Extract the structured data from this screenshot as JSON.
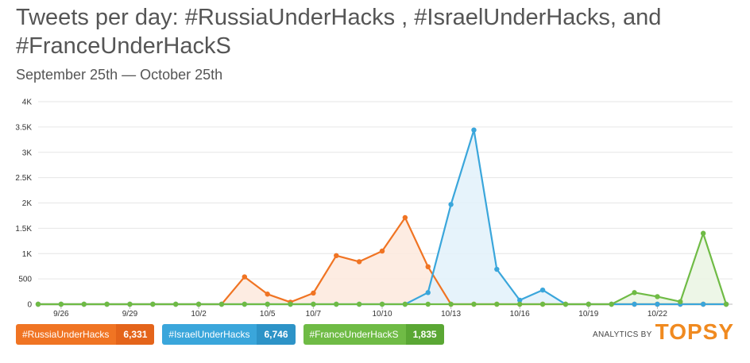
{
  "title": "Tweets per day: #RussiaUnderHacks , #IsraelUnderHacks, and #FranceUnderHackS",
  "subtitle": "September 25th — October 25th",
  "brand": {
    "small": "ANALYTICS BY",
    "big": "TOPSY"
  },
  "legend": [
    {
      "name": "#RussiaUnderHacks",
      "count": "6,331",
      "color": "#f07423",
      "count_color": "#e4641a"
    },
    {
      "name": "#IsraelUnderHacks",
      "count": "6,746",
      "color": "#3aa6db",
      "count_color": "#2d93c7"
    },
    {
      "name": "#FranceUnderHackS",
      "count": "1,835",
      "color": "#6fbb45",
      "count_color": "#5aa734"
    }
  ],
  "chart_data": {
    "type": "area",
    "x": [
      "9/25",
      "9/26",
      "9/27",
      "9/28",
      "9/29",
      "9/30",
      "10/1",
      "10/2",
      "10/3",
      "10/4",
      "10/5",
      "10/6",
      "10/7",
      "10/8",
      "10/9",
      "10/10",
      "10/11",
      "10/12",
      "10/13",
      "10/14",
      "10/15",
      "10/16",
      "10/17",
      "10/18",
      "10/19",
      "10/20",
      "10/21",
      "10/22",
      "10/23",
      "10/24",
      "10/25"
    ],
    "x_ticks": [
      "9/26",
      "9/29",
      "10/2",
      "10/5",
      "10/7",
      "10/10",
      "10/13",
      "10/16",
      "10/19",
      "10/22"
    ],
    "y_ticks": [
      "0",
      "500",
      "1K",
      "1.5K",
      "2K",
      "2.5K",
      "3K",
      "3.5K",
      "4K"
    ],
    "ylim": [
      0,
      4000
    ],
    "series": [
      {
        "name": "#RussiaUnderHacks",
        "color": "#f07423",
        "fill": "#fde9dd",
        "values": [
          0,
          0,
          0,
          0,
          0,
          0,
          0,
          0,
          0,
          540,
          200,
          40,
          220,
          960,
          840,
          1050,
          1710,
          740,
          0,
          0,
          0,
          0,
          0,
          0,
          0,
          0,
          0,
          0,
          0,
          0,
          0
        ]
      },
      {
        "name": "#IsraelUnderHacks",
        "color": "#3aa6db",
        "fill": "#e2f1fa",
        "values": [
          0,
          0,
          0,
          0,
          0,
          0,
          0,
          0,
          0,
          0,
          0,
          0,
          0,
          0,
          0,
          0,
          0,
          230,
          1970,
          3440,
          690,
          80,
          280,
          0,
          0,
          0,
          0,
          0,
          0,
          0,
          0
        ]
      },
      {
        "name": "#FranceUnderHackS",
        "color": "#6fbb45",
        "fill": "#eaf5e3",
        "values": [
          0,
          0,
          0,
          0,
          0,
          0,
          0,
          0,
          0,
          0,
          0,
          0,
          0,
          0,
          0,
          0,
          0,
          0,
          0,
          0,
          0,
          0,
          0,
          0,
          0,
          0,
          230,
          150,
          50,
          1400,
          0
        ]
      }
    ]
  }
}
